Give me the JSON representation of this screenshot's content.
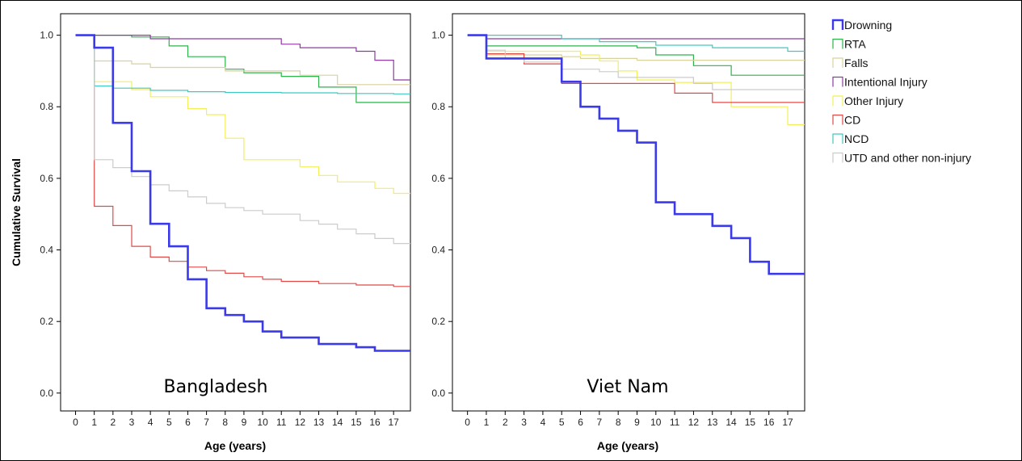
{
  "chart_data": {
    "type": "line",
    "step": true,
    "ylabel": "Cumulative Survival",
    "xlabel": "Age (years)",
    "xticks": [
      0,
      1,
      2,
      3,
      4,
      5,
      6,
      7,
      8,
      9,
      10,
      11,
      12,
      13,
      14,
      15,
      16,
      17
    ],
    "yticks": [
      "0.0",
      "0.2",
      "0.4",
      "0.6",
      "0.8",
      "1.0"
    ],
    "xlim": [
      -0.8,
      17.9
    ],
    "ylim": [
      -0.05,
      1.06
    ],
    "series_meta": [
      {
        "name": "Drowning",
        "color": "#3a3aeb",
        "width": 2.6
      },
      {
        "name": "RTA",
        "color": "#2db34a",
        "width": 1.2
      },
      {
        "name": "Falls",
        "color": "#d8d29e",
        "width": 1.2
      },
      {
        "name": "Intentional Injury",
        "color": "#8e3aa3",
        "width": 1.2
      },
      {
        "name": "Other Injury",
        "color": "#f2ef58",
        "width": 1.2
      },
      {
        "name": "CD",
        "color": "#e04b48",
        "width": 1.2
      },
      {
        "name": "NCD",
        "color": "#3fc9c0",
        "width": 1.2
      },
      {
        "name": "UTD and other non-injury",
        "color": "#cccccc",
        "width": 1.2
      }
    ],
    "panels": [
      {
        "title": "Bangladesh",
        "series": [
          {
            "name": "Drowning",
            "x": [
              0,
              1,
              2,
              3,
              4,
              5,
              6,
              7,
              8,
              9,
              10,
              11,
              13,
              15,
              16,
              17.9
            ],
            "y": [
              1.0,
              0.965,
              0.755,
              0.62,
              0.473,
              0.41,
              0.318,
              0.237,
              0.218,
              0.2,
              0.172,
              0.155,
              0.137,
              0.128,
              0.118,
              0.118
            ]
          },
          {
            "name": "RTA",
            "x": [
              0,
              3,
              5,
              6,
              8,
              9,
              11,
              13,
              15,
              17.9
            ],
            "y": [
              1.0,
              0.995,
              0.97,
              0.94,
              0.905,
              0.895,
              0.885,
              0.855,
              0.812,
              0.812
            ]
          },
          {
            "name": "Falls",
            "x": [
              0,
              1,
              3,
              4,
              8,
              12,
              14,
              17.9
            ],
            "y": [
              1.0,
              0.928,
              0.92,
              0.91,
              0.9,
              0.888,
              0.862,
              0.862
            ]
          },
          {
            "name": "Intentional Injury",
            "x": [
              0,
              4,
              11,
              12,
              15,
              16,
              17,
              17.9
            ],
            "y": [
              1.0,
              0.99,
              0.975,
              0.965,
              0.955,
              0.93,
              0.875,
              0.875
            ]
          },
          {
            "name": "Other Injury",
            "x": [
              0,
              1,
              3,
              4,
              6,
              7,
              8,
              9,
              12,
              13,
              14,
              16,
              17,
              17.9
            ],
            "y": [
              1.0,
              0.87,
              0.848,
              0.828,
              0.795,
              0.778,
              0.712,
              0.652,
              0.632,
              0.608,
              0.59,
              0.572,
              0.558,
              0.558
            ]
          },
          {
            "name": "CD",
            "x": [
              0,
              1,
              2,
              3,
              4,
              5,
              6,
              7,
              8,
              9,
              10,
              11,
              13,
              15,
              17,
              17.9
            ],
            "y": [
              1.0,
              0.522,
              0.468,
              0.41,
              0.38,
              0.368,
              0.352,
              0.342,
              0.335,
              0.325,
              0.318,
              0.312,
              0.306,
              0.302,
              0.298,
              0.298
            ]
          },
          {
            "name": "NCD",
            "x": [
              0,
              1,
              2,
              4,
              6,
              8,
              11,
              14,
              17,
              17.9
            ],
            "y": [
              1.0,
              0.858,
              0.852,
              0.846,
              0.842,
              0.84,
              0.839,
              0.837,
              0.836,
              0.836
            ]
          },
          {
            "name": "UTD and other non-injury",
            "x": [
              0,
              1,
              2,
              3,
              4,
              5,
              6,
              7,
              8,
              9,
              10,
              12,
              13,
              14,
              15,
              16,
              17,
              17.9
            ],
            "y": [
              1.0,
              0.652,
              0.63,
              0.605,
              0.582,
              0.565,
              0.548,
              0.53,
              0.518,
              0.51,
              0.5,
              0.482,
              0.472,
              0.458,
              0.445,
              0.432,
              0.418,
              0.418
            ]
          }
        ]
      },
      {
        "title": "Viet Nam",
        "series": [
          {
            "name": "Drowning",
            "x": [
              0,
              1,
              2,
              3,
              4,
              5,
              6,
              7,
              8,
              9,
              10,
              11,
              13,
              14,
              15,
              16,
              17.9
            ],
            "y": [
              1.0,
              0.935,
              0.935,
              0.935,
              0.935,
              0.87,
              0.8,
              0.767,
              0.733,
              0.7,
              0.533,
              0.5,
              0.467,
              0.433,
              0.367,
              0.333,
              0.333
            ]
          },
          {
            "name": "RTA",
            "x": [
              0,
              1,
              9,
              10,
              12,
              14,
              17.9
            ],
            "y": [
              1.0,
              0.97,
              0.965,
              0.945,
              0.915,
              0.888,
              0.888
            ]
          },
          {
            "name": "Falls",
            "x": [
              0,
              1,
              5,
              6,
              9,
              17.9
            ],
            "y": [
              1.0,
              0.945,
              0.94,
              0.935,
              0.93,
              0.93
            ]
          },
          {
            "name": "Intentional Injury",
            "x": [
              0,
              1,
              17.9
            ],
            "y": [
              1.0,
              0.99,
              0.99
            ]
          },
          {
            "name": "Other Injury",
            "x": [
              0,
              1,
              6,
              7,
              8,
              9,
              11,
              14,
              17,
              17.9
            ],
            "y": [
              1.0,
              0.955,
              0.945,
              0.928,
              0.9,
              0.875,
              0.868,
              0.8,
              0.75,
              0.75
            ]
          },
          {
            "name": "CD",
            "x": [
              0,
              1,
              3,
              5,
              11,
              13,
              17.9
            ],
            "y": [
              1.0,
              0.948,
              0.92,
              0.865,
              0.838,
              0.812,
              0.812
            ]
          },
          {
            "name": "NCD",
            "x": [
              0,
              5,
              7,
              10,
              13,
              17,
              17.9
            ],
            "y": [
              1.0,
              0.99,
              0.982,
              0.972,
              0.965,
              0.955,
              0.955
            ]
          },
          {
            "name": "UTD and other non-injury",
            "x": [
              0,
              1,
              2,
              3,
              5,
              7,
              8,
              12,
              13,
              17.9
            ],
            "y": [
              1.0,
              0.958,
              0.935,
              0.925,
              0.905,
              0.898,
              0.882,
              0.865,
              0.848,
              0.848
            ]
          }
        ]
      }
    ]
  }
}
